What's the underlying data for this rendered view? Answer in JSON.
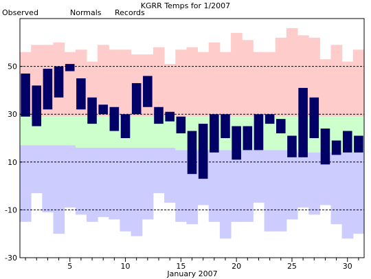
{
  "chart_data": {
    "type": "bar",
    "title": "KGRR Temps for 1/2007",
    "legend": [
      {
        "label": "Observed",
        "color": "#000066"
      },
      {
        "label": "Normals",
        "color": "#008800"
      },
      {
        "label": "Records",
        "color": "#ee88cc"
      }
    ],
    "xlabel": "January 2007",
    "ylabel": "",
    "ylim": [
      -30,
      70
    ],
    "xlim": [
      0.5,
      31.5
    ],
    "x_ticks": [
      5,
      10,
      15,
      20,
      25,
      30
    ],
    "y_ticks": [
      50,
      30,
      10,
      -10,
      -30
    ],
    "gridlines_y": [
      50,
      30,
      10,
      -10
    ],
    "colors": {
      "record_band": "#ffcccc",
      "normal_band": "#ccffcc",
      "below_band": "#ccccff",
      "observed": "#000066"
    },
    "days": [
      1,
      2,
      3,
      4,
      5,
      6,
      7,
      8,
      9,
      10,
      11,
      12,
      13,
      14,
      15,
      16,
      17,
      18,
      19,
      20,
      21,
      22,
      23,
      24,
      25,
      26,
      27,
      28,
      29,
      30,
      31
    ],
    "record_high": [
      56,
      59,
      59,
      60,
      56,
      57,
      52,
      59,
      57,
      57,
      55,
      55,
      58,
      51,
      57,
      58,
      56,
      60,
      56,
      64,
      61,
      56,
      56,
      62,
      66,
      63,
      62,
      53,
      59,
      52,
      57
    ],
    "normal_high": [
      29,
      29,
      29,
      29,
      29,
      29,
      29,
      29,
      29,
      29,
      29,
      29,
      29,
      29,
      29,
      29,
      29,
      29,
      29,
      29,
      29,
      29,
      29,
      29,
      29,
      29,
      29,
      29,
      29,
      29,
      29
    ],
    "normal_low": [
      17,
      17,
      17,
      17,
      17,
      16,
      16,
      16,
      16,
      16,
      16,
      16,
      16,
      16,
      15,
      15,
      15,
      15,
      15,
      15,
      15,
      15,
      15,
      15,
      15,
      14,
      14,
      14,
      14,
      14,
      14
    ],
    "record_low": [
      -15,
      -3,
      -11,
      -20,
      -9,
      -12,
      -15,
      -13,
      -14,
      -19,
      -21,
      -14,
      -3,
      -7,
      -15,
      -16,
      -8,
      -15,
      -22,
      -15,
      -15,
      -7,
      -19,
      -19,
      -14,
      -9,
      -12,
      -8,
      -16,
      -22,
      -20
    ],
    "observed_high": [
      47,
      42,
      49,
      50,
      51,
      45,
      37,
      34,
      33,
      30,
      43,
      46,
      33,
      31,
      29,
      23,
      26,
      30,
      30,
      25,
      25,
      30,
      30,
      28,
      21,
      41,
      37,
      24,
      19,
      23,
      21
    ],
    "observed_low": [
      29,
      25,
      32,
      37,
      48,
      32,
      26,
      30,
      23,
      20,
      30,
      33,
      26,
      27,
      22,
      5,
      3,
      14,
      20,
      11,
      15,
      15,
      26,
      22,
      12,
      12,
      20,
      9,
      13,
      14,
      14
    ]
  }
}
